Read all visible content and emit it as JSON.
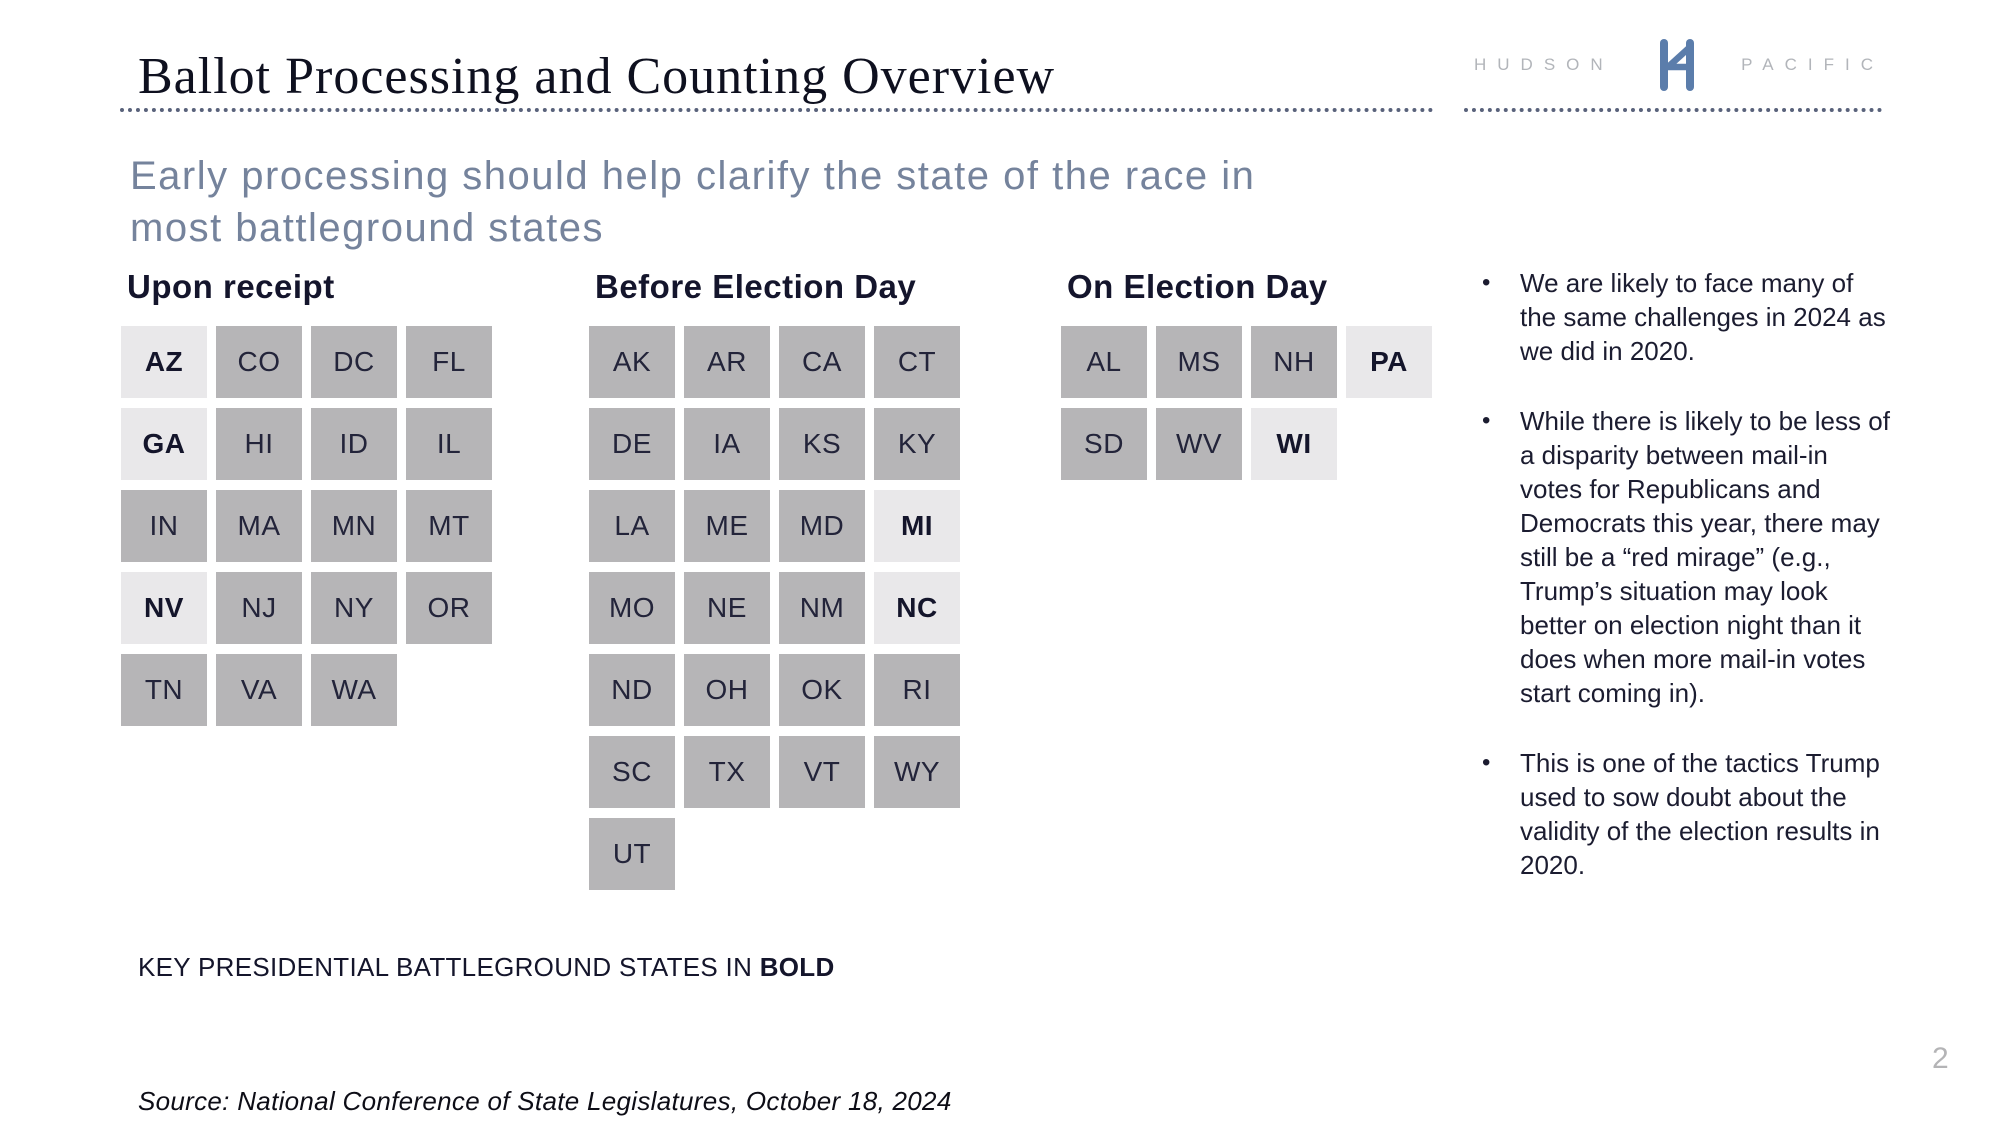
{
  "slide": {
    "title": "Ballot Processing and Counting Overview",
    "subtitle_line1": "Early processing should help clarify the state of the race in",
    "subtitle_line2": "most battleground states",
    "key_note_prefix": "KEY PRESIDENTIAL BATTLEGROUND STATES IN ",
    "key_note_bold": "BOLD",
    "source": "Source: National Conference of State Legislatures, October 18, 2024",
    "page_number": "2"
  },
  "logo": {
    "left_text": "HUDSON",
    "right_text": "PACIFIC",
    "monogram_icon": "h-bridge-monogram-icon",
    "monogram_color": "#5b7dab",
    "letter_color": "#b2b5ba"
  },
  "columns": [
    {
      "header": "Upon receipt",
      "rows": [
        [
          "AZ",
          "CO",
          "DC",
          "FL"
        ],
        [
          "GA",
          "HI",
          "ID",
          "IL"
        ],
        [
          "IN",
          "MA",
          "MN",
          "MT"
        ],
        [
          "NV",
          "NJ",
          "NY",
          "OR"
        ],
        [
          "TN",
          "VA",
          "WA"
        ]
      ]
    },
    {
      "header": "Before Election Day",
      "rows": [
        [
          "AK",
          "AR",
          "CA",
          "CT"
        ],
        [
          "DE",
          "IA",
          "KS",
          "KY"
        ],
        [
          "LA",
          "ME",
          "MD",
          "MI"
        ],
        [
          "MO",
          "NE",
          "NM",
          "NC"
        ],
        [
          "ND",
          "OH",
          "OK",
          "RI"
        ],
        [
          "SC",
          "TX",
          "VT",
          "WY"
        ],
        [
          "UT"
        ]
      ]
    },
    {
      "header": "On Election Day",
      "rows": [
        [
          "AL",
          "MS",
          "NH",
          "PA"
        ],
        [
          "SD",
          "WV",
          "WI"
        ]
      ]
    }
  ],
  "battleground_states": [
    "AZ",
    "GA",
    "NV",
    "MI",
    "NC",
    "PA",
    "WI"
  ],
  "bullets": [
    "We are likely to face many of the same challenges in 2024 as we did in 2020.",
    "While there is likely to be less of a disparity between mail-in votes for Republicans and Democrats this year, there may still be a “red mirage” (e.g., Trump’s situation may look better on election night than it does when more mail-in votes start coming in).",
    "This is one of the tactics Trump used to sow doubt about the validity of the election results in 2020."
  ],
  "colors": {
    "cell_gray": "#b6b5b7",
    "cell_battleground": "#e9e8ea",
    "navy_text": "#14152c",
    "subtitle_slate": "#75839c",
    "dotted_rule": "#59627b",
    "logo_blue": "#5b7dab",
    "page_number_gray": "#b4b4b6"
  }
}
